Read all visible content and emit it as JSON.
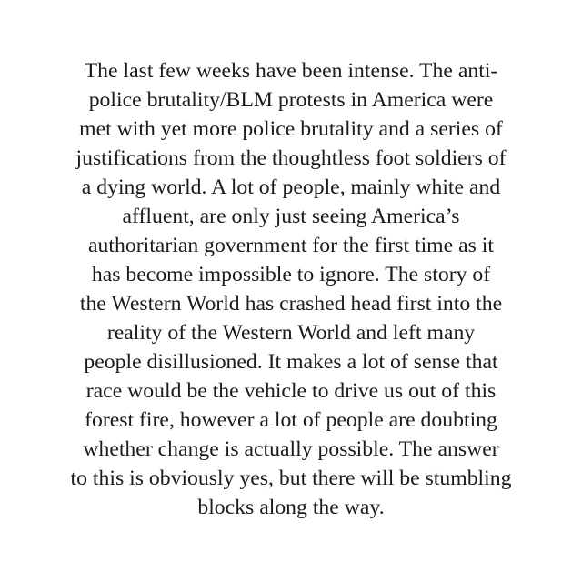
{
  "passage": {
    "lines": [
      "The last few weeks have been intense. The anti-",
      "police brutality/BLM protests in America were",
      "met with yet more police brutality and a series of",
      "justifications from the thoughtless foot soldiers of",
      "a dying world. A lot of people, mainly white and",
      "affluent, are only just seeing America’s",
      "authoritarian government for the first time as it",
      "has become impossible to ignore. The story of",
      "the Western World has crashed head first into the",
      "reality of the Western World and left many",
      "people disillusioned. It makes a lot of sense that",
      "race would be the vehicle to drive us out of this",
      "forest fire, however a lot of people are doubting",
      "whether change is actually possible. The answer",
      "to this is obviously yes, but there will be stumbling",
      "blocks along the way."
    ]
  },
  "colors": {
    "background": "#ffffff",
    "text": "#1b1b1b"
  }
}
